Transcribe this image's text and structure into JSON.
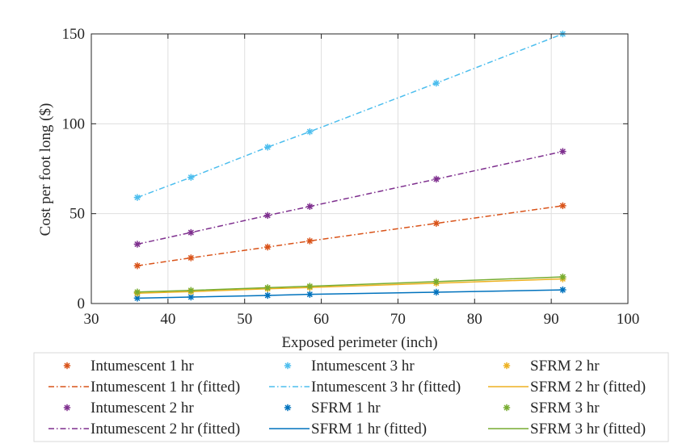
{
  "chart_data": {
    "type": "scatter",
    "xlabel": "Exposed perimeter  (inch)",
    "ylabel": "Cost per foot long ($)",
    "xlim": [
      30,
      100
    ],
    "ylim": [
      0,
      150
    ],
    "xticks": [
      30,
      40,
      50,
      60,
      70,
      80,
      90,
      100
    ],
    "yticks": [
      0,
      50,
      100,
      150
    ],
    "grid": true,
    "legend_position": "bottom",
    "x": [
      36,
      43,
      53,
      58.5,
      75,
      91.5
    ],
    "series": [
      {
        "name": "Intumescent 1 hr",
        "fitted_name": "Intumescent 1 hr (fitted)",
        "color": "#D95319",
        "dash": "dashdot",
        "values": [
          21,
          25.4,
          31.4,
          34.8,
          44.6,
          54.4
        ]
      },
      {
        "name": "Intumescent 2 hr",
        "fitted_name": "Intumescent 2 hr (fitted)",
        "color": "#7E2F8E",
        "dash": "dashdot",
        "values": [
          33,
          39.5,
          49,
          54,
          69.2,
          84.6
        ]
      },
      {
        "name": "Intumescent 3 hr",
        "fitted_name": "Intumescent 3 hr (fitted)",
        "color": "#4DBEEE",
        "dash": "dashdot",
        "values": [
          59,
          70.2,
          87,
          95.6,
          122.6,
          150
        ]
      },
      {
        "name": "SFRM 1 hr",
        "fitted_name": "SFRM 1 hr (fitted)",
        "color": "#0072BD",
        "dash": "solid",
        "values": [
          3,
          3.6,
          4.5,
          5.1,
          6.3,
          7.6
        ]
      },
      {
        "name": "SFRM 2 hr",
        "fitted_name": "SFRM 2 hr (fitted)",
        "color": "#EDB120",
        "dash": "solid",
        "values": [
          5.7,
          6.6,
          8.2,
          8.9,
          11.3,
          13.7
        ]
      },
      {
        "name": "SFRM 3 hr",
        "fitted_name": "SFRM 3 hr (fitted)",
        "color": "#77AC30",
        "dash": "solid",
        "values": [
          6.4,
          7.3,
          8.8,
          9.6,
          12.2,
          14.8
        ]
      }
    ]
  }
}
